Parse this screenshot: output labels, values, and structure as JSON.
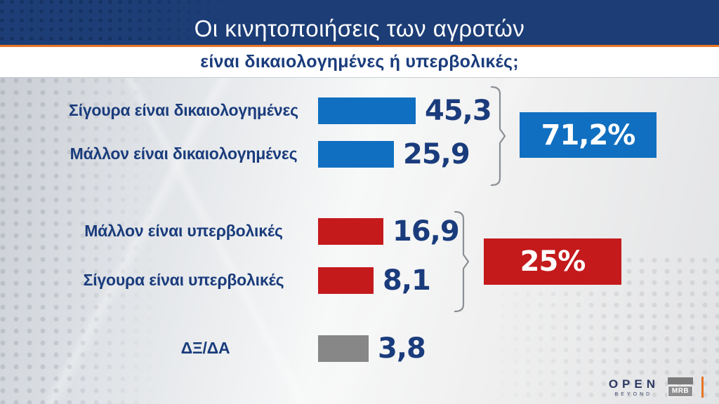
{
  "header": {
    "title": "Οι κινητοποιήσεις των αγροτών",
    "subtitle": "είναι δικαιολογημένες ή υπερβολικές;"
  },
  "chart_data": {
    "type": "bar",
    "orientation": "horizontal",
    "title": "Οι κινητοποιήσεις των αγροτών",
    "subtitle": "είναι δικαιολογημένες ή υπερβολικές;",
    "categories": [
      "Σίγουρα είναι δικαιολογημένες",
      "Μάλλον είναι δικαιολογημένες",
      "Μάλλον είναι υπερβολικές",
      "Σίγουρα είναι υπερβολικές",
      "ΔΞ/ΔΑ"
    ],
    "values": [
      45.3,
      25.9,
      16.9,
      8.1,
      3.8
    ],
    "value_labels": [
      "45,3",
      "25,9",
      "16,9",
      "8,1",
      "3,8"
    ],
    "colors": [
      "#106fc0",
      "#106fc0",
      "#c41a1c",
      "#c41a1c",
      "#878787"
    ],
    "groups": [
      {
        "label": "71,2%",
        "color": "#106fc0",
        "members": [
          0,
          1
        ]
      },
      {
        "label": "25%",
        "color": "#c41a1c",
        "members": [
          2,
          3
        ]
      }
    ],
    "grid": false,
    "legend": "none"
  },
  "colors": {
    "banner_navy": "#1c3d76",
    "text_navy": "#1a3c7c",
    "accent_orange": "#ec7423",
    "bracket_gray": "#8a8f94"
  },
  "footer": {
    "open_logo": "OPEN",
    "open_sub": "BEYOND",
    "mrb_label": "MRB"
  }
}
